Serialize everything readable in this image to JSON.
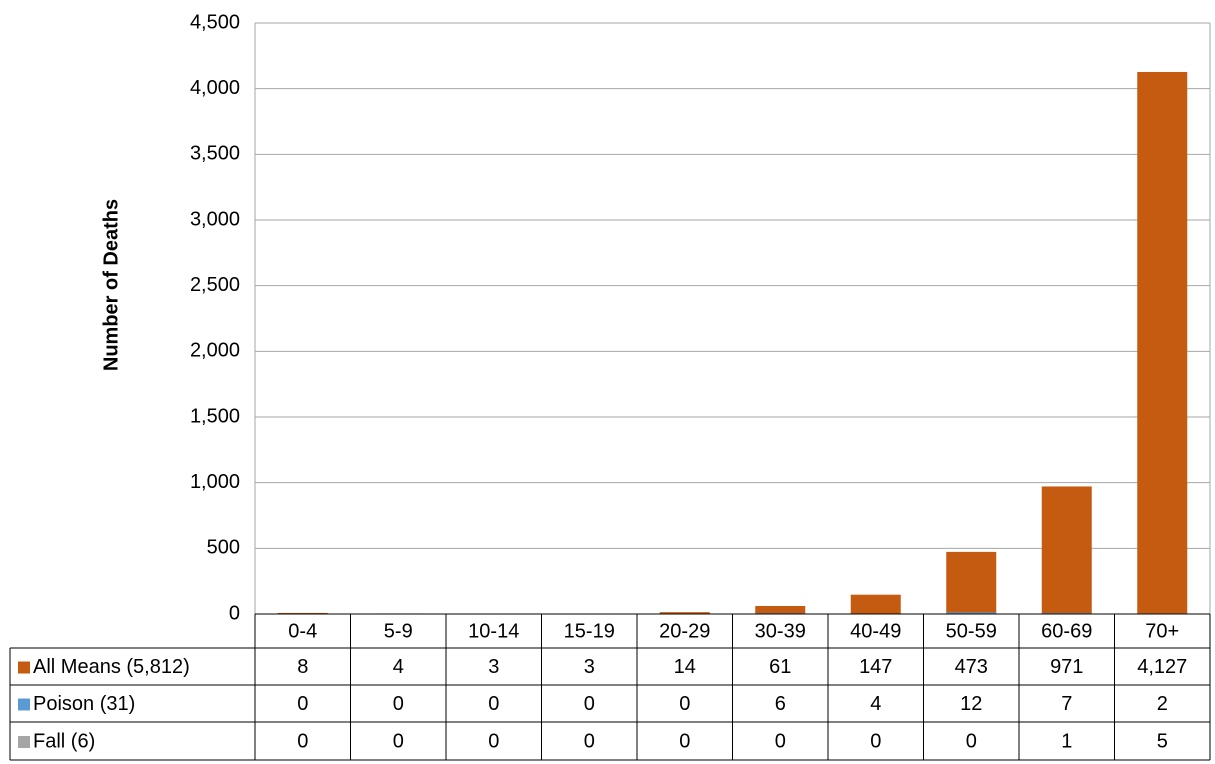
{
  "chart_data": {
    "type": "bar",
    "y_label": "Number of Deaths",
    "categories": [
      "0-4",
      "5-9",
      "10-14",
      "15-19",
      "20-29",
      "30-39",
      "40-49",
      "50-59",
      "60-69",
      "70+"
    ],
    "series": [
      {
        "name": "All Means (5,812)",
        "color": "#c55a11",
        "values": [
          8,
          4,
          3,
          3,
          14,
          61,
          147,
          473,
          971,
          4127
        ],
        "value_labels": [
          "8",
          "4",
          "3",
          "3",
          "14",
          "61",
          "147",
          "473",
          "971",
          "4,127"
        ]
      },
      {
        "name": "Poison (31)",
        "color": "#5b9bd5",
        "values": [
          0,
          0,
          0,
          0,
          0,
          6,
          4,
          12,
          7,
          2
        ]
      },
      {
        "name": "Fall (6)",
        "color": "#a5a5a5",
        "values": [
          0,
          0,
          0,
          0,
          0,
          0,
          0,
          0,
          1,
          5
        ]
      }
    ],
    "ylim": [
      0,
      4500
    ],
    "yticks": [
      0,
      500,
      {
        "value": 1000,
        "label": "1,000"
      },
      {
        "value": 1500,
        "label": "1,500"
      },
      {
        "value": 2000,
        "label": "2,000"
      },
      {
        "value": 2500,
        "label": "2,500"
      },
      {
        "value": 3000,
        "label": "3,000"
      },
      {
        "value": 3500,
        "label": "3,500"
      },
      {
        "value": 4000,
        "label": "4,000"
      },
      {
        "value": 4500,
        "label": "4,500"
      }
    ],
    "grid": true
  }
}
